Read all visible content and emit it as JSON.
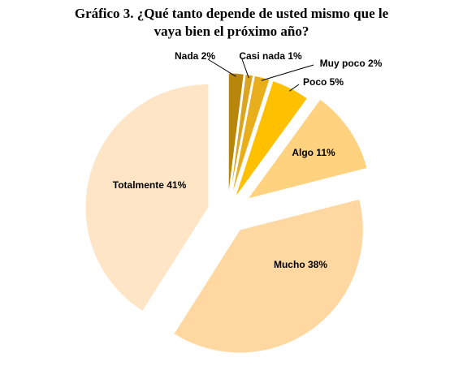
{
  "chart_data": {
    "type": "pie",
    "title_lines": [
      "Gráfico 3. ¿Qué tanto depende de usted mismo que le",
      "vaya bien el próximo año?"
    ],
    "exploded": true,
    "slices": [
      {
        "label": "Nada  2%",
        "category": "Nada",
        "value": 2,
        "color": "#B8860B"
      },
      {
        "label": "Casi nada 1%",
        "category": "Casi nada",
        "value": 1,
        "color": "#DAA520"
      },
      {
        "label": "Muy poco 2%",
        "category": "Muy poco",
        "value": 2,
        "color": "#E8AE1C"
      },
      {
        "label": "Poco 5%",
        "category": "Poco",
        "value": 5,
        "color": "#FFC000"
      },
      {
        "label": "Algo 11%",
        "category": "Algo",
        "value": 11,
        "color": "#FFD27F"
      },
      {
        "label": "Mucho 38%",
        "category": "Mucho",
        "value": 38,
        "color": "#FED8A0"
      },
      {
        "label": "Totalmente 41%",
        "category": "Totalmente",
        "value": 41,
        "color": "#FEE5C6"
      }
    ]
  }
}
